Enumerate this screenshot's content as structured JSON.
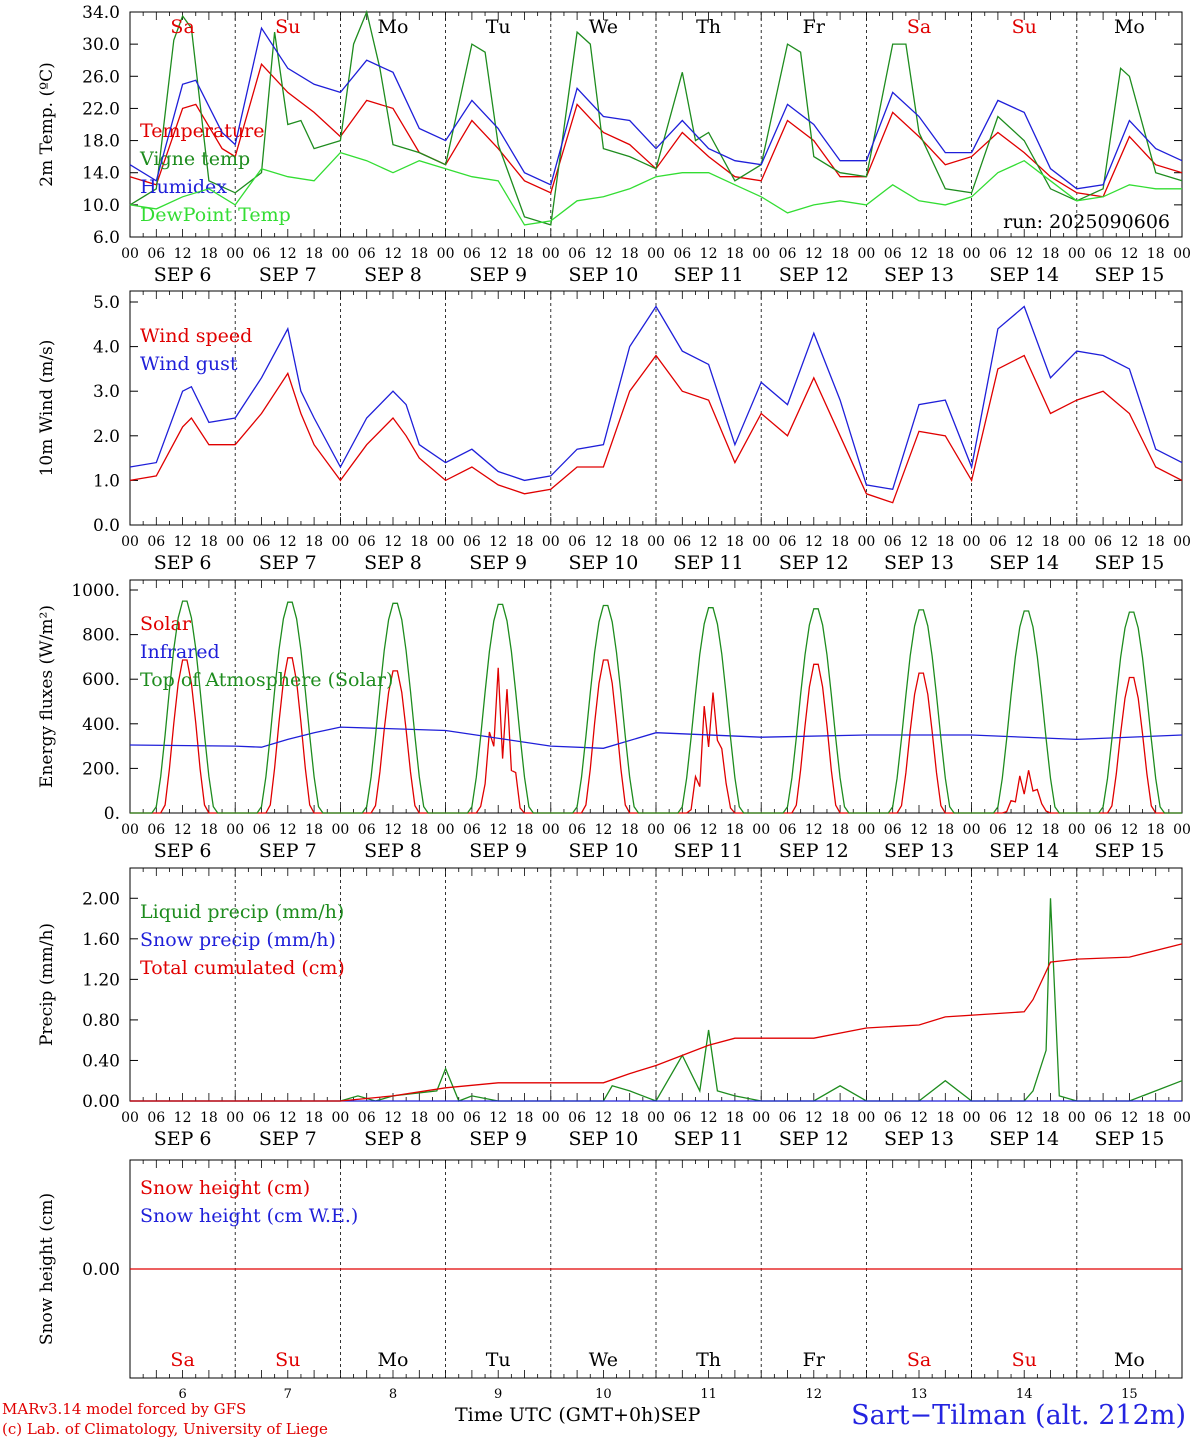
{
  "colors": {
    "red": "#e00000",
    "green": "#1e8c1e",
    "blue": "#1f1fd9",
    "lightgreen": "#33dd33",
    "weekend": "#e00000",
    "black": "#000000"
  },
  "run_label": "run: 2025090606",
  "weekdays": [
    "Sa",
    "Su",
    "Mo",
    "Tu",
    "We",
    "Th",
    "Fr",
    "Sa",
    "Su",
    "Mo"
  ],
  "weekend_flags": [
    true,
    true,
    false,
    false,
    false,
    false,
    false,
    true,
    true,
    false
  ],
  "date_labels": [
    "SEP  6",
    "SEP  7",
    "SEP  8",
    "SEP  9",
    "SEP 10",
    "SEP 11",
    "SEP 12",
    "SEP 13",
    "SEP 14",
    "SEP 15"
  ],
  "day_numbers": [
    "6",
    "7",
    "8",
    "9",
    "10",
    "11",
    "12",
    "13",
    "14",
    "15"
  ],
  "hour_ticks": [
    "00",
    "06",
    "12",
    "18"
  ],
  "hour_end": "00",
  "footer": {
    "credit_line1": "MARv3.14 model forced by GFS",
    "credit_line2": "(c) Lab. of Climatology, University of Liege",
    "xaxis_title": "Time UTC (GMT+0h)",
    "month": "SEP",
    "station": "Sart−Tilman (alt. 212m)"
  },
  "chart_data": [
    {
      "type": "line",
      "ylabel": "2m Temp. (ºC)",
      "ylim": [
        6.0,
        34.0
      ],
      "yticks": [
        "6.0",
        "10.0",
        "14.0",
        "18.0",
        "22.0",
        "26.0",
        "30.0",
        "34.0"
      ],
      "x_unit": "hours since SEP 6 00 UTC",
      "series": [
        {
          "name": "Temperature",
          "color": "red",
          "x": [
            0,
            6,
            12,
            15,
            21,
            24,
            30,
            36,
            42,
            48,
            54,
            60,
            66,
            72,
            78,
            84,
            90,
            96,
            102,
            108,
            114,
            120,
            126,
            132,
            138,
            144,
            150,
            156,
            162,
            168,
            174,
            180,
            186,
            192,
            198,
            204,
            210,
            216,
            222,
            228,
            234,
            240
          ],
          "y": [
            13.5,
            12.5,
            22,
            22.5,
            17,
            16,
            27.5,
            24,
            21.5,
            18.5,
            23,
            22,
            16.5,
            15,
            20.5,
            17,
            13,
            11.5,
            22.5,
            19,
            17.5,
            14.5,
            19,
            16,
            13.5,
            13,
            20.5,
            18,
            13.5,
            13.5,
            21.5,
            18.5,
            15,
            16,
            19,
            16.5,
            13.5,
            11.5,
            11,
            18.5,
            15,
            14
          ]
        },
        {
          "name": "Vigne temp",
          "color": "green",
          "x": [
            0,
            6,
            10,
            12,
            14,
            18,
            24,
            30,
            33,
            36,
            39,
            42,
            48,
            51,
            54,
            57,
            60,
            66,
            72,
            78,
            81,
            84,
            90,
            96,
            102,
            105,
            108,
            114,
            120,
            126,
            129,
            132,
            138,
            144,
            150,
            153,
            156,
            162,
            168,
            174,
            177,
            180,
            186,
            192,
            198,
            204,
            210,
            216,
            222,
            226,
            228,
            234,
            240
          ],
          "y": [
            10,
            12,
            30.5,
            33.5,
            32,
            13,
            11.5,
            14,
            31.5,
            20,
            20.5,
            17,
            18,
            30,
            34,
            27,
            17.5,
            16.5,
            15,
            30,
            29,
            17.5,
            8.5,
            7.5,
            31.5,
            30,
            17,
            16,
            14.5,
            26.5,
            18,
            19,
            13,
            15,
            30,
            29,
            16,
            14,
            13.5,
            30,
            30,
            19,
            12,
            11.5,
            21,
            18,
            12,
            10.5,
            12,
            27,
            26,
            14,
            13
          ]
        },
        {
          "name": "Humidex",
          "color": "blue",
          "x": [
            0,
            6,
            12,
            15,
            21,
            24,
            30,
            36,
            42,
            48,
            54,
            60,
            66,
            72,
            78,
            84,
            90,
            96,
            102,
            108,
            114,
            120,
            126,
            132,
            138,
            144,
            150,
            156,
            162,
            168,
            174,
            180,
            186,
            192,
            198,
            204,
            210,
            216,
            222,
            228,
            234,
            240
          ],
          "y": [
            15,
            13,
            25,
            25.5,
            19,
            17.5,
            32,
            27,
            25,
            24,
            28,
            26.5,
            19.5,
            18,
            23,
            19.5,
            14,
            12.5,
            24.5,
            21,
            20.5,
            17,
            20.5,
            17,
            15.5,
            15,
            22.5,
            20,
            15.5,
            15.5,
            24,
            21,
            16.5,
            16.5,
            23,
            21.5,
            14.5,
            12,
            12.5,
            20.5,
            17,
            15.5
          ]
        },
        {
          "name": "DewPoint Temp",
          "color": "lightgreen",
          "x": [
            0,
            6,
            12,
            18,
            24,
            30,
            36,
            42,
            48,
            54,
            60,
            66,
            72,
            78,
            84,
            90,
            96,
            102,
            108,
            114,
            120,
            126,
            132,
            138,
            144,
            150,
            156,
            162,
            168,
            174,
            180,
            186,
            192,
            198,
            204,
            210,
            216,
            222,
            228,
            234,
            240
          ],
          "y": [
            10,
            9.5,
            11,
            12,
            10,
            14.5,
            13.5,
            13,
            16.5,
            15.5,
            14,
            15.5,
            14.5,
            13.5,
            13,
            7.5,
            8,
            10.5,
            11,
            12,
            13.5,
            14,
            14,
            12.5,
            11,
            9,
            10,
            10.5,
            10,
            12.5,
            10.5,
            10,
            11,
            14,
            15.5,
            13,
            10.5,
            11,
            12.5,
            12,
            12
          ]
        }
      ]
    },
    {
      "type": "line",
      "ylabel": "10m Wind (m/s)",
      "ylim": [
        0.0,
        5.0
      ],
      "yticks": [
        "0.0",
        "1.0",
        "2.0",
        "3.0",
        "4.0",
        "5.0"
      ],
      "series": [
        {
          "name": "Wind speed",
          "color": "red",
          "x": [
            0,
            6,
            12,
            14,
            18,
            24,
            30,
            36,
            39,
            42,
            48,
            54,
            60,
            63,
            66,
            72,
            78,
            84,
            90,
            96,
            102,
            108,
            114,
            120,
            126,
            132,
            138,
            144,
            150,
            156,
            162,
            168,
            174,
            180,
            186,
            192,
            198,
            204,
            210,
            216,
            222,
            228,
            234,
            240
          ],
          "y": [
            1.0,
            1.1,
            2.2,
            2.4,
            1.8,
            1.8,
            2.5,
            3.4,
            2.5,
            1.8,
            1.0,
            1.8,
            2.4,
            2.0,
            1.5,
            1.0,
            1.3,
            0.9,
            0.7,
            0.8,
            1.3,
            1.3,
            3.0,
            3.8,
            3.0,
            2.8,
            1.4,
            2.5,
            2.0,
            3.3,
            2.0,
            0.7,
            0.5,
            2.1,
            2.0,
            1.0,
            3.5,
            3.8,
            2.5,
            2.8,
            3.0,
            2.5,
            1.3,
            1.0
          ]
        },
        {
          "name": "Wind gust",
          "color": "blue",
          "x": [
            0,
            6,
            12,
            14,
            18,
            24,
            30,
            36,
            39,
            42,
            48,
            54,
            60,
            63,
            66,
            72,
            78,
            84,
            90,
            96,
            102,
            108,
            114,
            120,
            126,
            132,
            138,
            144,
            150,
            156,
            162,
            168,
            174,
            180,
            186,
            192,
            198,
            204,
            210,
            216,
            222,
            228,
            234,
            240
          ],
          "y": [
            1.3,
            1.4,
            3.0,
            3.1,
            2.3,
            2.4,
            3.3,
            4.4,
            3.0,
            2.4,
            1.3,
            2.4,
            3.0,
            2.7,
            1.8,
            1.4,
            1.7,
            1.2,
            1.0,
            1.1,
            1.7,
            1.8,
            4.0,
            4.9,
            3.9,
            3.6,
            1.8,
            3.2,
            2.7,
            4.3,
            2.8,
            0.9,
            0.8,
            2.7,
            2.8,
            1.3,
            4.4,
            4.9,
            3.3,
            3.9,
            3.8,
            3.5,
            1.7,
            1.4
          ]
        }
      ]
    },
    {
      "type": "line",
      "ylabel": "Energy fluxes (W/m²)",
      "ylim": [
        0,
        1000
      ],
      "yticks": [
        "0.",
        "200.",
        "400.",
        "600.",
        "800.",
        "1000."
      ],
      "series": [
        {
          "name": "Solar",
          "color": "red",
          "peaks": [
            700,
            710,
            650,
            670,
            700,
            580,
            680,
            640,
            200,
            620
          ],
          "x": [],
          "y": []
        },
        {
          "name": "Infrared",
          "color": "blue",
          "x": [
            0,
            24,
            30,
            36,
            42,
            48,
            72,
            96,
            108,
            120,
            144,
            168,
            192,
            216,
            240
          ],
          "y": [
            305,
            300,
            295,
            330,
            360,
            385,
            370,
            300,
            290,
            360,
            340,
            350,
            350,
            330,
            350
          ]
        },
        {
          "name": "Top of Atmosphere (Solar)",
          "color": "green",
          "peaks": [
            960,
            955,
            950,
            945,
            940,
            930,
            925,
            920,
            915,
            910
          ],
          "x": [],
          "y": []
        }
      ]
    },
    {
      "type": "line",
      "ylabel": "Precip (mm/h)",
      "ylim": [
        0.0,
        2.2
      ],
      "yticks": [
        "0.00",
        "0.40",
        "0.80",
        "1.20",
        "1.60",
        "2.00"
      ],
      "series": [
        {
          "name": "Liquid precip (mm/h)",
          "color": "green",
          "x": [
            0,
            48,
            52,
            56,
            60,
            70,
            72,
            75,
            78,
            84,
            96,
            108,
            110,
            114,
            120,
            126,
            130,
            132,
            134,
            138,
            144,
            156,
            162,
            168,
            180,
            186,
            192,
            204,
            206,
            209,
            210,
            212,
            216,
            228,
            240
          ],
          "y": [
            0,
            0,
            0.05,
            0,
            0.05,
            0.1,
            0.32,
            0,
            0.05,
            0,
            0,
            0,
            0.15,
            0.1,
            0,
            0.45,
            0.1,
            0.7,
            0.1,
            0.05,
            0,
            0,
            0.15,
            0,
            0,
            0.2,
            0,
            0,
            0.1,
            0.5,
            2.0,
            0.05,
            0,
            0,
            0.2
          ]
        },
        {
          "name": "Snow precip (mm/h)",
          "color": "blue",
          "x": [
            0,
            240
          ],
          "y": [
            0,
            0
          ]
        },
        {
          "name": "Total cumulated (cm)",
          "color": "red",
          "x": [
            0,
            48,
            60,
            72,
            84,
            96,
            108,
            114,
            120,
            132,
            138,
            156,
            168,
            180,
            186,
            204,
            206,
            210,
            216,
            228,
            240
          ],
          "y": [
            0,
            0,
            0.05,
            0.13,
            0.18,
            0.18,
            0.18,
            0.27,
            0.35,
            0.55,
            0.62,
            0.62,
            0.72,
            0.75,
            0.83,
            0.88,
            1.0,
            1.37,
            1.4,
            1.42,
            1.55
          ]
        }
      ]
    },
    {
      "type": "line",
      "ylabel": "Snow height (cm)",
      "ylim": [
        -1,
        1
      ],
      "yticks": [
        "0.00"
      ],
      "series": [
        {
          "name": "Snow height (cm)",
          "color": "red",
          "x": [
            0,
            240
          ],
          "y": [
            0,
            0
          ]
        },
        {
          "name": "Snow height (cm W.E.)",
          "color": "blue",
          "x": [],
          "y": []
        }
      ]
    }
  ]
}
